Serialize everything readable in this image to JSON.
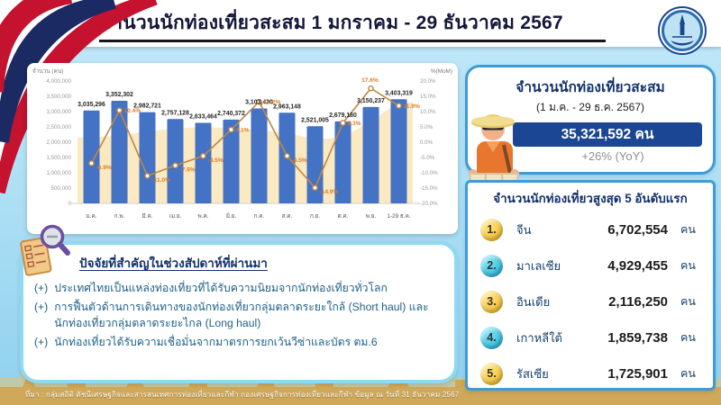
{
  "header": {
    "title": "จำนวนนักท่องเที่ยวสะสม 1 มกราคม - 29 ธันวาคม 2567"
  },
  "chart_data": {
    "type": "bar",
    "title": "",
    "categories": [
      "ม.ค.",
      "ก.พ.",
      "มี.ค.",
      "เม.ย.",
      "พ.ค.",
      "มิ.ย.",
      "ก.ค.",
      "ส.ค.",
      "ก.ย.",
      "ต.ค.",
      "พ.ย.",
      "1-29 ธ.ค."
    ],
    "ylabel_left": "จำนวน (คน)",
    "ylabel_right": "%(MoM)",
    "ylim_left": [
      0,
      4000000
    ],
    "ylim_right": [
      -20,
      20
    ],
    "yticks_left": [
      "4,000,000",
      "3,500,000",
      "3,000,000",
      "2,500,000",
      "2,000,000",
      "1,500,000",
      "1,000,000",
      "500,000",
      "0"
    ],
    "yticks_right": [
      "20.0%",
      "15.0%",
      "10.0%",
      "5.0%",
      "0.0%",
      "-5.0%",
      "-10.0%",
      "-15.0%",
      "-20.0%"
    ],
    "grid": false,
    "legend": "none",
    "series": [
      {
        "name": "จำนวนนักท่องเที่ยว (คน)",
        "type": "bar",
        "color": "#4472c4",
        "values": [
          3035296,
          3352302,
          2982721,
          2757128,
          2633464,
          2740372,
          3103420,
          2963148,
          2521005,
          2679180,
          3150237,
          3403319
        ],
        "labels": [
          "3,035,296",
          "3,352,302",
          "2,982,721",
          "2,757,128",
          "2,633,464",
          "2,740,372",
          "3,103,420",
          "2,963,148",
          "2,521,005",
          "2,679,180",
          "3,150,237",
          "3,403,319"
        ]
      },
      {
        "name": "%(MoM)",
        "type": "line",
        "color": "#bf8743",
        "label_color": "#e07b24",
        "values": [
          -6.9,
          10.4,
          -11.0,
          -7.6,
          -4.5,
          4.1,
          13.2,
          -4.5,
          -14.9,
          6.3,
          17.6,
          11.9
        ],
        "labels": [
          "-6.9%",
          "10.4%",
          "-11.0%",
          "-7.6%",
          "-4.5%",
          "4.1%",
          "13.2%",
          "-4.5%",
          "-14.9%",
          "6.3%",
          "17.6%",
          "11.9%"
        ]
      },
      {
        "name": "area-background-approx",
        "type": "area",
        "color": "#fbe9c2",
        "values": [
          2150000,
          2220000,
          2350000,
          2450000,
          2500000,
          2450000,
          2400000,
          2300000,
          2100000,
          2150000,
          2700000,
          3300000
        ]
      }
    ]
  },
  "summary": {
    "title": "จำนวนนักท่องเที่ยวสะสม",
    "subtitle": "(1 ม.ค. - 29 ธ.ค. 2567)",
    "total": "35,321,592 คน",
    "yoy": "+26% (YoY)",
    "band_color": "#1b4693"
  },
  "top5": {
    "title": "จำนวนนักท่องเที่ยวสูงสุด 5 อันดับแรก",
    "rows": [
      {
        "rank": "1.",
        "badge_color": "yellow",
        "name": "จีน",
        "value": "6,702,554",
        "unit": "คน"
      },
      {
        "rank": "2.",
        "badge_color": "cyan",
        "name": "มาเลเซีย",
        "value": "4,929,455",
        "unit": "คน"
      },
      {
        "rank": "3.",
        "badge_color": "yellow",
        "name": "อินเดีย",
        "value": "2,116,250",
        "unit": "คน"
      },
      {
        "rank": "4.",
        "badge_color": "cyan",
        "name": "เกาหลีใต้",
        "value": "1,859,738",
        "unit": "คน"
      },
      {
        "rank": "5.",
        "badge_color": "yellow",
        "name": "รัสเซีย",
        "value": "1,725,901",
        "unit": "คน"
      }
    ]
  },
  "factors": {
    "title": "ปัจจัยที่สำคัญในช่วงสัปดาห์ที่ผ่านมา",
    "bullets": [
      {
        "prefix": "(+)",
        "text": "ประเทศไทยเป็นแหล่งท่องเที่ยวที่ได้รับความนิยมจากนักท่องเที่ยวทั่วโลก"
      },
      {
        "prefix": "(+)",
        "text": "การฟื้นตัวด้านการเดินทางของนักท่องเที่ยวกลุ่มตลาดระยะใกล้ (Short haul) และนักท่องเที่ยวกลุ่มตลาดระยะไกล (Long haul)"
      },
      {
        "prefix": "(+)",
        "text": "นักท่องเที่ยวได้รับความเชื่อมั่นจากมาตรการยกเว้นวีซ่าและบัตร ตม.6"
      }
    ]
  },
  "footer": {
    "source": "ที่มา : กลุ่มสถิติ ดัชนีเศรษฐกิจและสารสนเทศการท่องเที่ยวและกีฬา กองเศรษฐกิจการท่องเที่ยวและกีฬา ข้อมูล ณ วันที่ 31 ธันวาคม 2567"
  },
  "colors": {
    "bar": "#4472c4",
    "line": "#bf8743",
    "pct_label": "#e07b24",
    "area": "#fbe9c2",
    "card_border": "#3e9bd6",
    "factors_border": "#8ed9f3",
    "navy_band": "#1b4693",
    "badge_yellow": "#f2b722",
    "badge_cyan": "#17b2d8"
  }
}
